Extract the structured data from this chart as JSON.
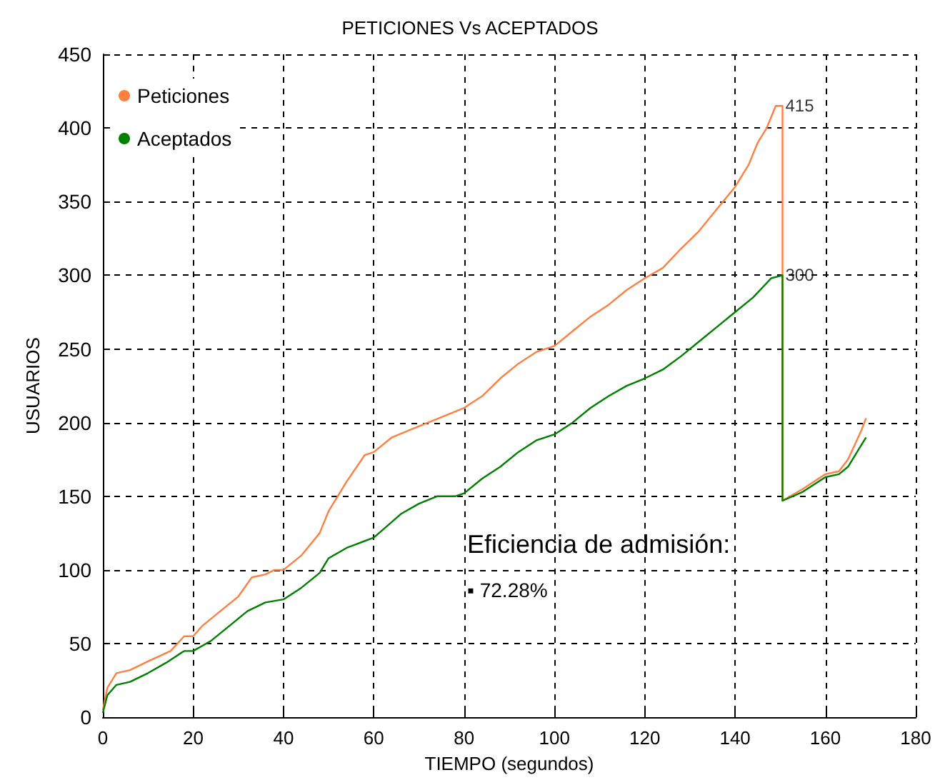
{
  "chart_data": {
    "type": "line",
    "title": "PETICIONES Vs ACEPTADOS",
    "xlabel": "TIEMPO (segundos)",
    "ylabel": "USUARIOS",
    "xlim": [
      0,
      180
    ],
    "xticks": [
      0,
      20,
      40,
      60,
      80,
      100,
      120,
      140,
      160,
      180
    ],
    "ylim": [
      0,
      450
    ],
    "yticks": [
      0,
      50,
      100,
      150,
      200,
      250,
      300,
      350,
      400,
      450
    ],
    "grid": true,
    "legend": "top left",
    "marker": "none",
    "line_style": "solid",
    "series": [
      {
        "name": "Peticiones",
        "color": "#ff8040",
        "x": [
          0,
          1,
          3,
          6,
          10,
          15,
          18,
          20,
          22,
          26,
          30,
          33,
          36,
          38,
          40,
          44,
          48,
          50,
          54,
          58,
          60,
          64,
          68,
          72,
          76,
          80,
          84,
          88,
          92,
          96,
          100,
          104,
          108,
          112,
          116,
          120,
          124,
          128,
          132,
          136,
          140,
          143,
          145,
          147,
          149,
          150.5,
          150.5,
          150.5,
          155,
          160,
          163,
          165,
          168,
          169
        ],
        "values": [
          5,
          20,
          30,
          32,
          38,
          45,
          55,
          55,
          62,
          72,
          82,
          95,
          97,
          100,
          100,
          110,
          125,
          140,
          160,
          178,
          180,
          190,
          195,
          200,
          205,
          210,
          218,
          230,
          240,
          248,
          252,
          262,
          272,
          280,
          290,
          298,
          305,
          318,
          330,
          345,
          360,
          375,
          390,
          400,
          415,
          415,
          300,
          147,
          155,
          165,
          167,
          175,
          195,
          203
        ]
      },
      {
        "name": "Aceptados",
        "color": "#008000",
        "x": [
          0,
          1,
          3,
          6,
          10,
          14,
          18,
          20,
          24,
          28,
          32,
          36,
          40,
          44,
          48,
          50,
          54,
          60,
          66,
          70,
          74,
          78,
          80,
          84,
          88,
          92,
          96,
          100,
          104,
          108,
          112,
          116,
          120,
          124,
          128,
          132,
          136,
          140,
          144,
          148,
          150.5,
          150.5,
          155,
          160,
          163,
          165,
          168,
          169
        ],
        "values": [
          3,
          15,
          22,
          24,
          30,
          37,
          45,
          45,
          52,
          62,
          72,
          78,
          80,
          88,
          98,
          108,
          115,
          122,
          138,
          145,
          150,
          150,
          152,
          162,
          170,
          180,
          188,
          192,
          200,
          210,
          218,
          225,
          230,
          236,
          245,
          255,
          265,
          275,
          285,
          298,
          300,
          147,
          153,
          163,
          165,
          170,
          185,
          190
        ]
      }
    ],
    "annotations": [
      {
        "text": "415",
        "x": 150.5,
        "y": 415
      },
      {
        "text": "300",
        "x": 150.5,
        "y": 300
      },
      "Eficiencia de admisión:",
      "▪ 72.28%"
    ]
  }
}
